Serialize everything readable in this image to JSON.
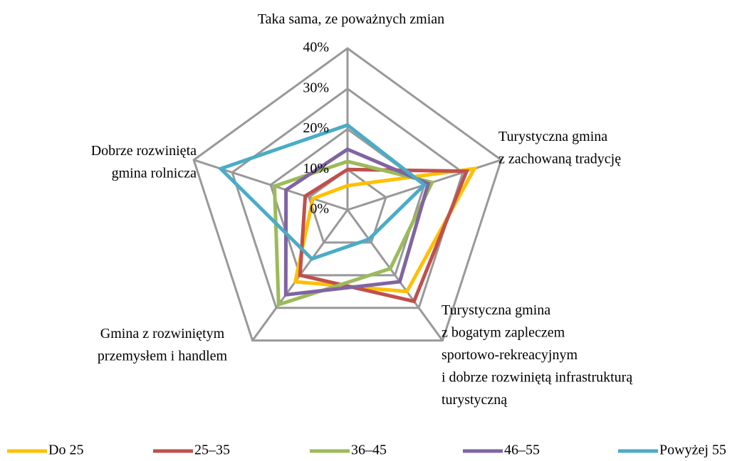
{
  "chart_data": {
    "type": "radar",
    "categories": [
      [
        "Taka sama, ze poważnych zmian"
      ],
      [
        "Turystyczna gmina",
        "z zachowaną tradycję"
      ],
      [
        "Turystyczna gmina",
        "z bogatym zapleczem",
        "sportowo-rekreacyjnym",
        "i dobrze rozwiniętą infrastrukturą",
        "turystyczną"
      ],
      [
        "Gmina z rozwiniętym",
        "przemysłem i handlem"
      ],
      [
        "Dobrze rozwinięta",
        "gmina rolnicza"
      ]
    ],
    "series": [
      {
        "name": "Do 25",
        "color": "#ffc000",
        "values": [
          6,
          33,
          25,
          22,
          9
        ]
      },
      {
        "name": "25–35",
        "color": "#c0504d",
        "values": [
          10,
          31,
          28,
          20,
          11
        ]
      },
      {
        "name": "36–45",
        "color": "#9bbb59",
        "values": [
          12,
          22,
          18,
          29,
          19
        ]
      },
      {
        "name": "46–55",
        "color": "#8064a2",
        "values": [
          15,
          21,
          22,
          26,
          16
        ]
      },
      {
        "name": "Powyżej 55",
        "color": "#4bacc6",
        "values": [
          21,
          20,
          9,
          15,
          33
        ]
      }
    ],
    "ylim": [
      0,
      40
    ],
    "yticks": [
      {
        "value": 0,
        "label": "0%"
      },
      {
        "value": 10,
        "label": "10%"
      },
      {
        "value": 20,
        "label": "20%"
      },
      {
        "value": 30,
        "label": "30%"
      },
      {
        "value": 40,
        "label": "40%"
      }
    ],
    "grid": true,
    "legend": "bottom"
  }
}
